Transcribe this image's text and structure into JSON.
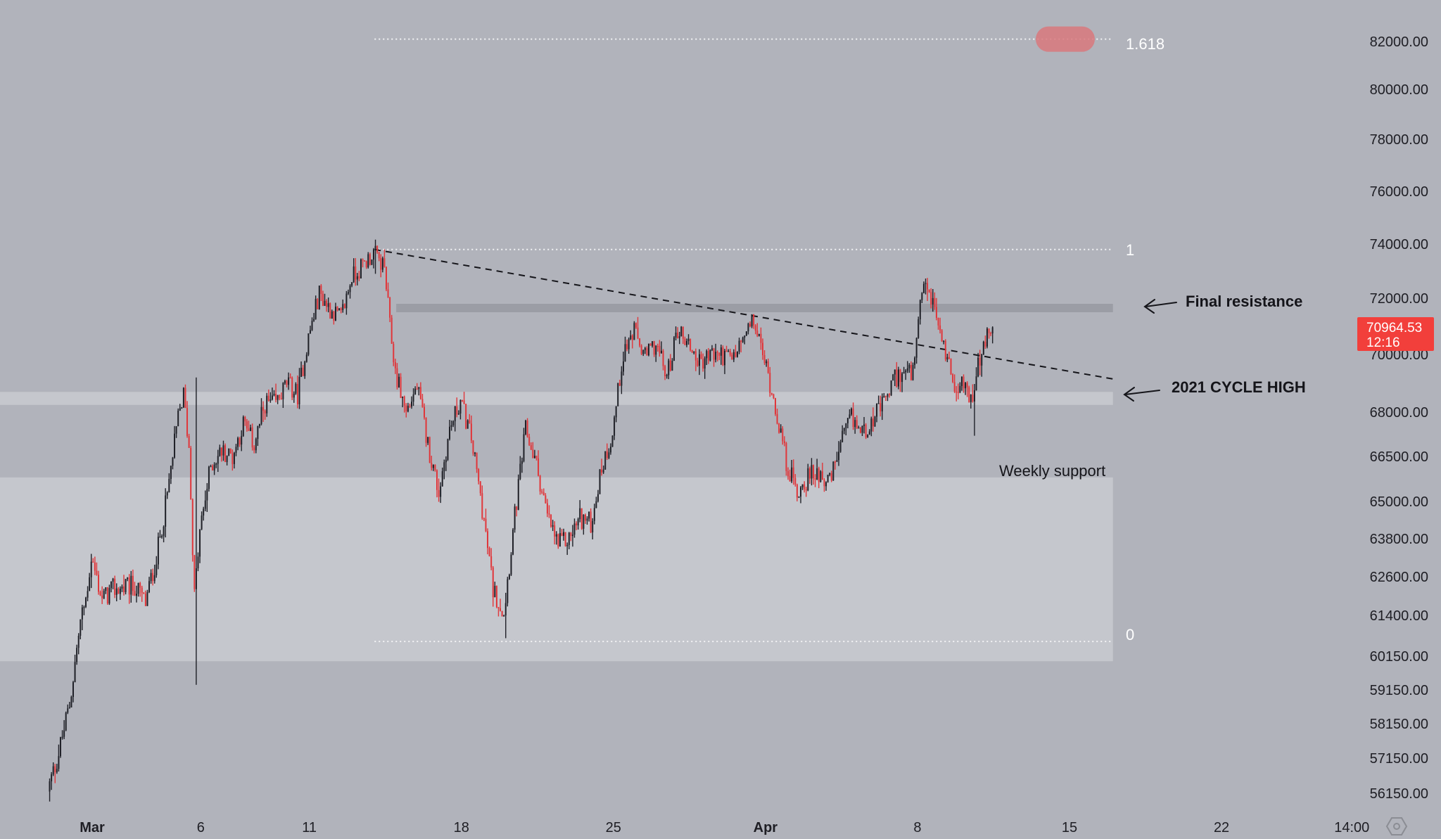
{
  "chart_data": {
    "type": "candlestick",
    "title": "",
    "xlabel": "",
    "ylabel": "",
    "ylim": [
      55500,
      82800
    ],
    "y_ticks": [
      "82000.00",
      "80000.00",
      "78000.00",
      "76000.00",
      "74000.00",
      "72000.00",
      "70000.00",
      "68000.00",
      "66500.00",
      "65000.00",
      "63800.00",
      "62600.00",
      "61400.00",
      "60150.00",
      "59150.00",
      "58150.00",
      "57150.00",
      "56150.00"
    ],
    "x_ticks": [
      {
        "label": "Mar",
        "date": "2024-03-01",
        "bold": true
      },
      {
        "label": "6",
        "date": "2024-03-06",
        "bold": false
      },
      {
        "label": "11",
        "date": "2024-03-11",
        "bold": false
      },
      {
        "label": "18",
        "date": "2024-03-18",
        "bold": false
      },
      {
        "label": "25",
        "date": "2024-03-25",
        "bold": false
      },
      {
        "label": "Apr",
        "date": "2024-04-01",
        "bold": true
      },
      {
        "label": "8",
        "date": "2024-04-08",
        "bold": false
      },
      {
        "label": "15",
        "date": "2024-04-15",
        "bold": false
      },
      {
        "label": "22",
        "date": "2024-04-22",
        "bold": false
      },
      {
        "label": "14:00",
        "date": "2024-04-28",
        "bold": false
      }
    ],
    "path_points": [
      [
        "2024-02-28 00:00",
        56200
      ],
      [
        "2024-02-28 12:00",
        57300
      ],
      [
        "2024-02-29 00:00",
        58700
      ],
      [
        "2024-02-29 12:00",
        61200
      ],
      [
        "2024-02-29 18:00",
        61900
      ],
      [
        "2024-03-01 00:00",
        63200
      ],
      [
        "2024-03-01 12:00",
        61900
      ],
      [
        "2024-03-02 00:00",
        62200
      ],
      [
        "2024-03-03 00:00",
        62300
      ],
      [
        "2024-03-03 12:00",
        61800
      ],
      [
        "2024-03-04 00:00",
        63200
      ],
      [
        "2024-03-04 12:00",
        65200
      ],
      [
        "2024-03-05 00:00",
        67800
      ],
      [
        "2024-03-05 06:00",
        68600
      ],
      [
        "2024-03-05 12:00",
        66800
      ],
      [
        "2024-03-05 18:00",
        62000
      ],
      [
        "2024-03-06 00:00",
        64000
      ],
      [
        "2024-03-06 12:00",
        66200
      ],
      [
        "2024-03-07 00:00",
        66700
      ],
      [
        "2024-03-07 12:00",
        66500
      ],
      [
        "2024-03-08 00:00",
        67600
      ],
      [
        "2024-03-08 12:00",
        66900
      ],
      [
        "2024-03-09 00:00",
        68300
      ],
      [
        "2024-03-09 12:00",
        68300
      ],
      [
        "2024-03-10 00:00",
        69000
      ],
      [
        "2024-03-10 12:00",
        68600
      ],
      [
        "2024-03-11 00:00",
        70600
      ],
      [
        "2024-03-11 12:00",
        72200
      ],
      [
        "2024-03-12 00:00",
        71600
      ],
      [
        "2024-03-12 12:00",
        71300
      ],
      [
        "2024-03-13 00:00",
        72800
      ],
      [
        "2024-03-13 12:00",
        73200
      ],
      [
        "2024-03-14 00:00",
        73700
      ],
      [
        "2024-03-14 12:00",
        73100
      ],
      [
        "2024-03-14 18:00",
        71000
      ],
      [
        "2024-03-15 00:00",
        69400
      ],
      [
        "2024-03-15 12:00",
        68000
      ],
      [
        "2024-03-16 00:00",
        68900
      ],
      [
        "2024-03-16 12:00",
        66900
      ],
      [
        "2024-03-17 00:00",
        65300
      ],
      [
        "2024-03-17 12:00",
        67400
      ],
      [
        "2024-03-18 00:00",
        68400
      ],
      [
        "2024-03-18 12:00",
        67100
      ],
      [
        "2024-03-19 00:00",
        64800
      ],
      [
        "2024-03-19 12:00",
        62200
      ],
      [
        "2024-03-20 00:00",
        61500
      ],
      [
        "2024-03-20 12:00",
        64500
      ],
      [
        "2024-03-21 00:00",
        67400
      ],
      [
        "2024-03-21 12:00",
        66200
      ],
      [
        "2024-03-22 00:00",
        64500
      ],
      [
        "2024-03-22 12:00",
        63600
      ],
      [
        "2024-03-23 00:00",
        63800
      ],
      [
        "2024-03-23 12:00",
        64500
      ],
      [
        "2024-03-24 00:00",
        64300
      ],
      [
        "2024-03-24 12:00",
        66100
      ],
      [
        "2024-03-25 00:00",
        67300
      ],
      [
        "2024-03-25 12:00",
        70100
      ],
      [
        "2024-03-26 00:00",
        70800
      ],
      [
        "2024-03-26 12:00",
        69900
      ],
      [
        "2024-03-27 00:00",
        70400
      ],
      [
        "2024-03-27 12:00",
        69200
      ],
      [
        "2024-03-28 00:00",
        70900
      ],
      [
        "2024-03-28 12:00",
        70400
      ],
      [
        "2024-03-29 00:00",
        69700
      ],
      [
        "2024-03-29 12:00",
        70000
      ],
      [
        "2024-03-30 00:00",
        70000
      ],
      [
        "2024-03-30 12:00",
        69800
      ],
      [
        "2024-03-31 00:00",
        70500
      ],
      [
        "2024-03-31 12:00",
        71200
      ],
      [
        "2024-04-01 00:00",
        69800
      ],
      [
        "2024-04-01 12:00",
        68200
      ],
      [
        "2024-04-02 00:00",
        66300
      ],
      [
        "2024-04-02 12:00",
        65300
      ],
      [
        "2024-04-03 00:00",
        65800
      ],
      [
        "2024-04-03 12:00",
        66000
      ],
      [
        "2024-04-04 00:00",
        65600
      ],
      [
        "2024-04-04 12:00",
        66900
      ],
      [
        "2024-04-05 00:00",
        67800
      ],
      [
        "2024-04-05 12:00",
        67300
      ],
      [
        "2024-04-06 00:00",
        67800
      ],
      [
        "2024-04-06 12:00",
        68300
      ],
      [
        "2024-04-07 00:00",
        69200
      ],
      [
        "2024-04-07 12:00",
        69400
      ],
      [
        "2024-04-07 20:00",
        69300
      ],
      [
        "2024-04-08 04:00",
        71600
      ],
      [
        "2024-04-08 10:00",
        72500
      ],
      [
        "2024-04-08 18:00",
        71800
      ],
      [
        "2024-04-09 06:00",
        70300
      ],
      [
        "2024-04-09 18:00",
        69000
      ],
      [
        "2024-04-10 06:00",
        68900
      ],
      [
        "2024-04-10 14:00",
        68400
      ],
      [
        "2024-04-10 20:00",
        69600
      ],
      [
        "2024-04-11 06:00",
        70600
      ],
      [
        "2024-04-11 12:00",
        70964.53
      ]
    ],
    "extremes": [
      {
        "date": "2024-03-05 18:00",
        "high": 69200,
        "low": 59300
      },
      {
        "date": "2024-03-14 00:00",
        "high": 73800,
        "low": 72900
      },
      {
        "date": "2024-03-20 00:00",
        "high": 62100,
        "low": 60700
      },
      {
        "date": "2024-04-08 10:00",
        "high": 72750,
        "low": 71900
      },
      {
        "date": "2024-04-10 14:00",
        "high": 68900,
        "low": 67200
      }
    ],
    "zones": [
      {
        "name": "Final resistance",
        "from_date": "2024-03-15",
        "to_date": "2024-04-17",
        "low": 71500,
        "high": 71800
      },
      {
        "name": "2021 CYCLE HIGH",
        "from_date": "2024-02-26",
        "to_date": "2024-04-17",
        "low": 68250,
        "high": 68700
      },
      {
        "name": "Weekly support",
        "from_date": "2024-02-26",
        "to_date": "2024-04-17",
        "low": 60000,
        "high": 65800
      }
    ],
    "fib_levels": [
      {
        "label": "1.618",
        "value": 82100
      },
      {
        "label": "1",
        "value": 73800
      },
      {
        "label": "0",
        "value": 60600
      }
    ],
    "fib_range_dates": [
      "2024-03-14",
      "2024-04-17"
    ],
    "trendline": {
      "start": [
        "2024-03-14",
        73800
      ],
      "end": [
        "2024-04-17",
        69150
      ]
    },
    "annotations": {
      "final_resistance": "Final resistance",
      "cycle_high": "2021 CYCLE HIGH",
      "weekly_support": "Weekly support"
    },
    "current_price": {
      "value": "70964.53",
      "countdown": "12:16"
    },
    "colors": {
      "background": "#b1b3bb",
      "up_candle": "#1f2027",
      "down_candle": "#e0363a",
      "zone_light": "#c5c7cd",
      "zone_dark": "#9a9ca3",
      "highlight": "#d9787c",
      "badge": "#f23f3b"
    },
    "grid": false,
    "legend": "none"
  }
}
